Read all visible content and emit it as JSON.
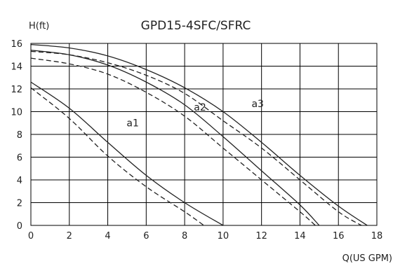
{
  "chart_data": {
    "type": "line",
    "title": "GPD15-4SFC/SFRC",
    "xlabel": "Q(US GPM)",
    "ylabel": "H(ft)",
    "xlim": [
      0,
      18
    ],
    "ylim": [
      0,
      16
    ],
    "xticks": [
      0,
      2,
      4,
      6,
      8,
      10,
      12,
      14,
      16,
      18
    ],
    "yticks": [
      0,
      2,
      4,
      6,
      8,
      10,
      12,
      14,
      16
    ],
    "grid": true,
    "series": [
      {
        "name": "a1",
        "style": "solid",
        "x": [
          0,
          2,
          4,
          6,
          8,
          10
        ],
        "y": [
          12.6,
          10.3,
          7.3,
          4.4,
          2.0,
          0.0
        ]
      },
      {
        "name": "a1",
        "style": "dashed",
        "x": [
          0,
          2,
          4,
          6,
          8,
          9
        ],
        "y": [
          12.1,
          9.4,
          6.1,
          3.4,
          1.2,
          0.0
        ]
      },
      {
        "name": "a2",
        "style": "solid",
        "x": [
          0,
          2,
          4,
          6,
          8,
          10,
          12,
          14,
          15
        ],
        "y": [
          15.4,
          15.0,
          14.1,
          12.6,
          10.6,
          7.8,
          4.8,
          1.8,
          0.0
        ]
      },
      {
        "name": "a2",
        "style": "dashed",
        "x": [
          0,
          2,
          4,
          6,
          8,
          10,
          12,
          14,
          14.8
        ],
        "y": [
          14.7,
          14.2,
          13.3,
          11.7,
          9.6,
          6.8,
          4.0,
          1.2,
          0.0
        ]
      },
      {
        "name": "a3",
        "style": "solid",
        "x": [
          0,
          2,
          4,
          6,
          8,
          10,
          12,
          14,
          16,
          17.5
        ],
        "y": [
          15.9,
          15.6,
          14.9,
          13.7,
          12.1,
          10.0,
          7.3,
          4.4,
          1.7,
          0.0
        ]
      },
      {
        "name": "a3",
        "style": "dashed",
        "x": [
          0,
          2,
          4,
          6,
          8,
          10,
          12,
          14,
          16,
          17.2
        ],
        "y": [
          15.3,
          15.0,
          14.3,
          13.2,
          11.6,
          9.2,
          6.8,
          4.0,
          1.2,
          0.0
        ]
      }
    ],
    "annotations": [
      {
        "text": "a1",
        "x": 5.3,
        "y": 8.7
      },
      {
        "text": "a2",
        "x": 8.8,
        "y": 10.1
      },
      {
        "text": "a3",
        "x": 11.8,
        "y": 10.4
      }
    ],
    "colors": {
      "line": "#222222",
      "grid": "#000000"
    }
  }
}
